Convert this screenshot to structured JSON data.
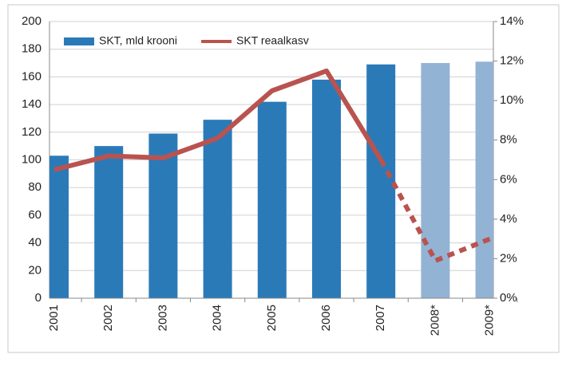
{
  "chart_data": {
    "type": "bar_line",
    "categories": [
      "2001",
      "2002",
      "2003",
      "2004",
      "2005",
      "2006",
      "2007",
      "2008*",
      "2009*"
    ],
    "series": [
      {
        "name": "SKT, mld krooni",
        "type": "bar",
        "color": "#2a7ab8",
        "colors": [
          "#2a7ab8",
          "#2a7ab8",
          "#2a7ab8",
          "#2a7ab8",
          "#2a7ab8",
          "#2a7ab8",
          "#2a7ab8",
          "#93b3d4",
          "#93b3d4"
        ],
        "values": [
          103,
          110,
          119,
          129,
          142,
          158,
          169,
          170,
          171
        ]
      },
      {
        "name": "SKT reaalkasv",
        "type": "line",
        "axis": "y2",
        "color": "#b9534f",
        "dashed_from": "2007",
        "values": [
          6.5,
          7.2,
          7.1,
          8.1,
          10.5,
          11.5,
          7.0,
          1.9,
          3.0
        ]
      }
    ],
    "ylim": [
      0,
      200
    ],
    "yticks": [
      0,
      20,
      40,
      60,
      80,
      100,
      120,
      140,
      160,
      180,
      200
    ],
    "y2lim": [
      0,
      14
    ],
    "y2ticks": [
      {
        "value": 0,
        "label": "0%"
      },
      {
        "value": 2,
        "label": "2%"
      },
      {
        "value": 4,
        "label": "4%"
      },
      {
        "value": 6,
        "label": "6%"
      },
      {
        "value": 8,
        "label": "8%"
      },
      {
        "value": 10,
        "label": "10%"
      },
      {
        "value": 12,
        "label": "12%"
      },
      {
        "value": 14,
        "label": "14%"
      }
    ],
    "grid": true,
    "legend": "upper left"
  }
}
